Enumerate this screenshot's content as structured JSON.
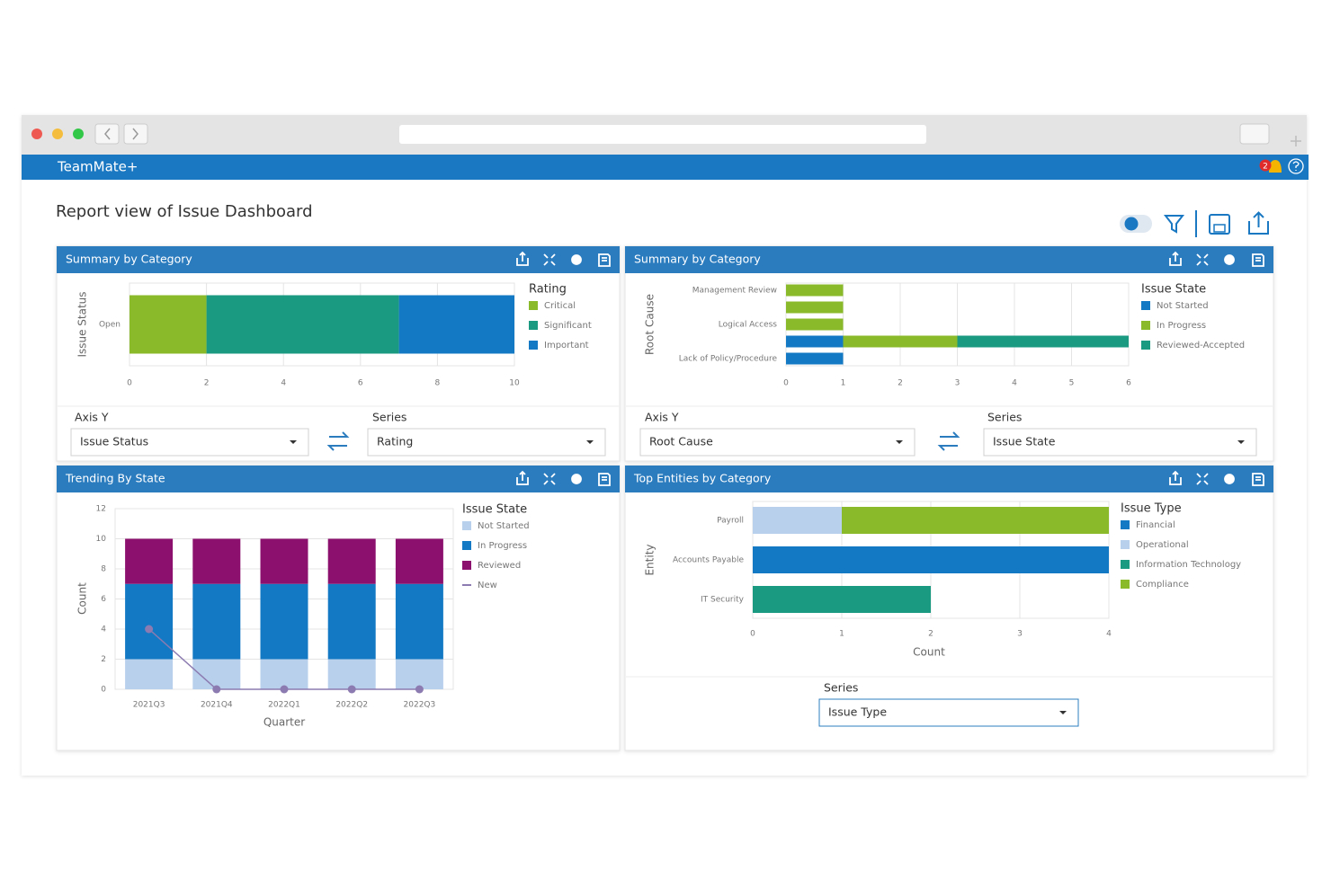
{
  "app": {
    "name": "TeamMate+",
    "notifications": 2
  },
  "page": {
    "title": "Report view of Issue Dashboard"
  },
  "panels": [
    {
      "title": "Summary by Category",
      "chart": {
        "type": "hbar",
        "y_label": "Issue Status",
        "categories": [
          "Open"
        ],
        "legend_title": "Rating",
        "series": [
          {
            "name": "Critical",
            "color": "#8aba2a",
            "values": [
              2
            ]
          },
          {
            "name": "Significant",
            "color": "#1a9a80",
            "values": [
              5
            ]
          },
          {
            "name": "Important",
            "color": "#1479c4",
            "values": [
              3
            ]
          }
        ],
        "xlim": [
          0,
          10
        ],
        "xticks": [
          0,
          2,
          4,
          6,
          8,
          10
        ],
        "grid": true
      },
      "controls": [
        {
          "label": "Axis Y",
          "value": "Issue Status"
        },
        {
          "label": "Series",
          "value": "Rating"
        }
      ]
    },
    {
      "title": "Summary by Category",
      "chart": {
        "type": "hbar",
        "y_label": "Root Cause",
        "categories": [
          "Management Review",
          null,
          "Logical Access",
          null,
          "Lack of Policy/Procedure"
        ],
        "legend_title": "Issue State",
        "series": [
          {
            "name": "Not Started",
            "color": "#1479c4",
            "values": [
              0,
              0,
              0,
              1,
              1
            ]
          },
          {
            "name": "In Progress",
            "color": "#8aba2a",
            "values": [
              1,
              1,
              1,
              2,
              0
            ]
          },
          {
            "name": "Reviewed-Accepted",
            "color": "#1a9a80",
            "values": [
              0,
              0,
              0,
              3,
              0
            ]
          }
        ],
        "xlim": [
          0,
          6
        ],
        "xticks": [
          0,
          1,
          2,
          3,
          4,
          5,
          6
        ],
        "grid": true
      },
      "controls": [
        {
          "label": "Axis Y",
          "value": "Root Cause"
        },
        {
          "label": "Series",
          "value": "Issue State"
        }
      ]
    },
    {
      "title": "Trending By State",
      "chart": {
        "type": "bar",
        "x_label": "Quarter",
        "y_label": "Count",
        "categories": [
          "2021Q3",
          "2021Q4",
          "2022Q1",
          "2022Q2",
          "2022Q3"
        ],
        "legend_title": "Issue State",
        "series": [
          {
            "name": "Not Started",
            "color": "#b8d0ec",
            "values": [
              2,
              2,
              2,
              2,
              2
            ]
          },
          {
            "name": "In Progress",
            "color": "#1479c4",
            "values": [
              5,
              5,
              5,
              5,
              5
            ]
          },
          {
            "name": "Reviewed",
            "color": "#8c116e",
            "values": [
              3,
              3,
              3,
              3,
              3
            ]
          },
          {
            "name": "New",
            "color": "#8c7bb0",
            "kind": "line",
            "values": [
              4,
              0,
              0,
              0,
              0
            ]
          }
        ],
        "ylim": [
          0,
          12
        ],
        "yticks": [
          0,
          2,
          4,
          6,
          8,
          10,
          12
        ],
        "grid": true
      },
      "controls": []
    },
    {
      "title": "Top Entities by Category",
      "chart": {
        "type": "hbar",
        "x_label": "Count",
        "y_label": "Entity",
        "categories": [
          "Payroll",
          "Accounts Payable",
          "IT Security"
        ],
        "legend_title": "Issue Type",
        "series": [
          {
            "name": "Financial",
            "color": "#1479c4",
            "values": [
              0,
              4,
              0
            ]
          },
          {
            "name": "Operational",
            "color": "#b8d0ec",
            "values": [
              1,
              0,
              0
            ]
          },
          {
            "name": "Information Technology",
            "color": "#1a9a80",
            "values": [
              0,
              0,
              2
            ]
          },
          {
            "name": "Compliance",
            "color": "#8aba2a",
            "values": [
              3,
              0,
              0
            ]
          }
        ],
        "xlim": [
          0,
          4
        ],
        "xticks": [
          0,
          1,
          2,
          3,
          4
        ],
        "grid": true
      },
      "controls": [
        {
          "label": "Series",
          "value": "Issue Type"
        }
      ]
    }
  ]
}
